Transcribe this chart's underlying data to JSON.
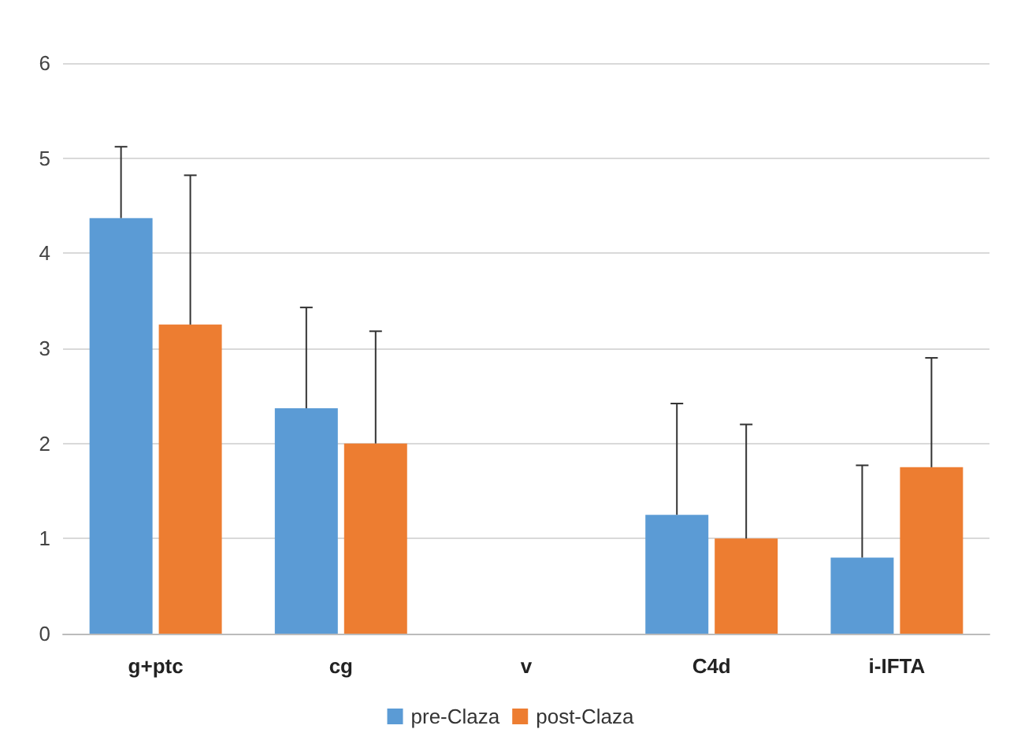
{
  "chart_data": {
    "type": "bar",
    "categories": [
      "g+ptc",
      "cg",
      "v",
      "C4d",
      "i-IFTA"
    ],
    "series": [
      {
        "name": "pre-Claza",
        "color": "#5b9bd5",
        "values": [
          4.37,
          2.37,
          0,
          1.25,
          0.8
        ],
        "errors": [
          [
            4.37,
            5.12
          ],
          [
            2.37,
            3.43
          ],
          null,
          [
            1.25,
            2.42
          ],
          [
            0.8,
            1.77
          ]
        ]
      },
      {
        "name": "post-Claza",
        "color": "#ed7d31",
        "values": [
          3.25,
          2.0,
          0,
          1.0,
          1.75
        ],
        "errors": [
          [
            3.25,
            4.82
          ],
          [
            2.0,
            3.18
          ],
          null,
          [
            1.0,
            2.2
          ],
          [
            1.75,
            2.9
          ]
        ]
      }
    ],
    "ylim": [
      0,
      6
    ],
    "yticks": [
      0,
      1,
      2,
      3,
      4,
      5,
      6
    ],
    "grid": "y",
    "legend": "bottom"
  }
}
